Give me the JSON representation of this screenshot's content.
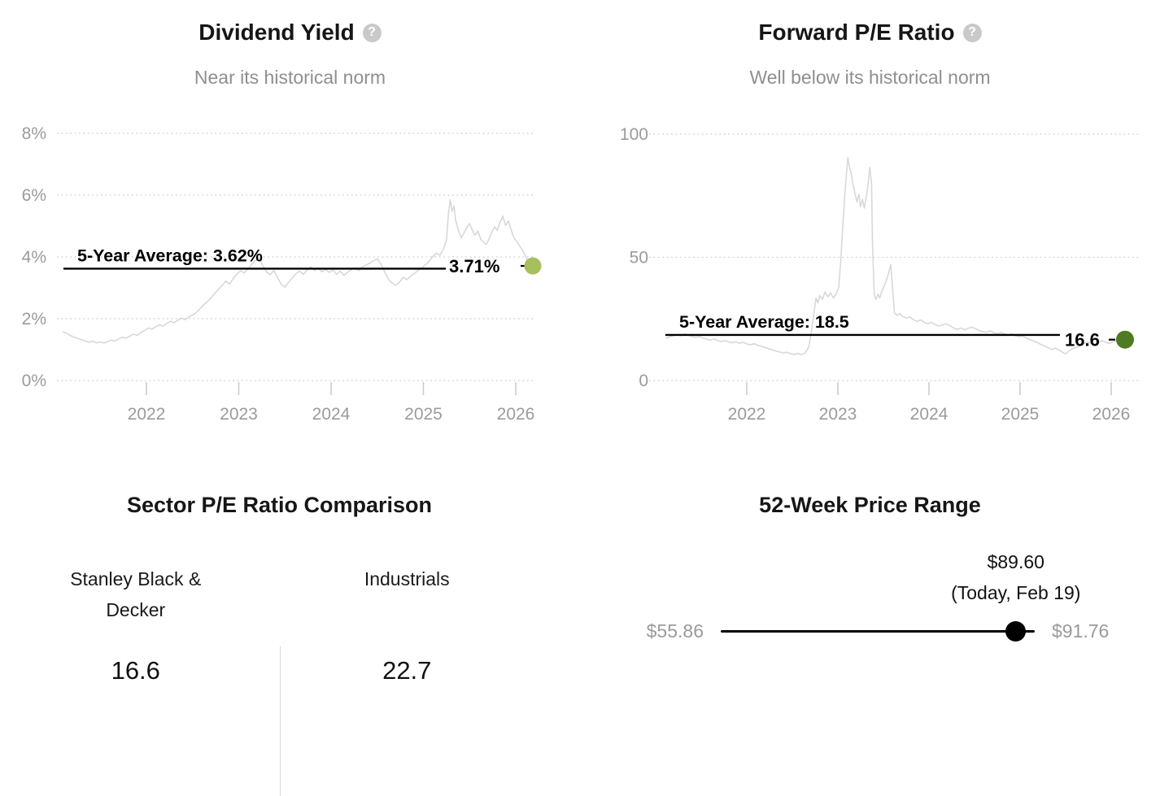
{
  "icons": {
    "help_glyph": "?"
  },
  "chart_data": [
    {
      "type": "line",
      "title": "Dividend Yield",
      "subtitle": "Near its historical norm",
      "help_icon": "question-mark-icon",
      "grid": "dotted-horizontal",
      "legend": "none",
      "line_color": "#d8d8d8",
      "axis_color": "#9b9b9b",
      "xlim": [
        2021.1,
        2026.3
      ],
      "ylim": [
        0,
        8.6
      ],
      "y_ticks": [
        {
          "label": "8%",
          "value": 8
        },
        {
          "label": "6%",
          "value": 6
        },
        {
          "label": "4%",
          "value": 4
        },
        {
          "label": "2%",
          "value": 2
        },
        {
          "label": "0%",
          "value": 0
        }
      ],
      "x_ticks": [
        {
          "label": "2022",
          "value": 2022
        },
        {
          "label": "2023",
          "value": 2023
        },
        {
          "label": "2024",
          "value": 2024
        },
        {
          "label": "2025",
          "value": 2025
        },
        {
          "label": "2026",
          "value": 2026
        }
      ],
      "average_line": {
        "label": "5-Year Average: 3.62%",
        "value": 3.62,
        "color": "#000000"
      },
      "current_point": {
        "label": "3.71%",
        "value": 3.71,
        "dot_color": "#a6c05e"
      },
      "series": [
        [
          2021.1,
          1.58
        ],
        [
          2021.14,
          1.52
        ],
        [
          2021.18,
          1.45
        ],
        [
          2021.22,
          1.4
        ],
        [
          2021.26,
          1.36
        ],
        [
          2021.3,
          1.32
        ],
        [
          2021.34,
          1.28
        ],
        [
          2021.38,
          1.24
        ],
        [
          2021.42,
          1.27
        ],
        [
          2021.46,
          1.22
        ],
        [
          2021.5,
          1.25
        ],
        [
          2021.54,
          1.21
        ],
        [
          2021.58,
          1.26
        ],
        [
          2021.62,
          1.31
        ],
        [
          2021.66,
          1.28
        ],
        [
          2021.7,
          1.35
        ],
        [
          2021.74,
          1.4
        ],
        [
          2021.78,
          1.37
        ],
        [
          2021.82,
          1.44
        ],
        [
          2021.86,
          1.5
        ],
        [
          2021.9,
          1.46
        ],
        [
          2021.94,
          1.55
        ],
        [
          2021.98,
          1.62
        ],
        [
          2022.02,
          1.7
        ],
        [
          2022.06,
          1.66
        ],
        [
          2022.1,
          1.74
        ],
        [
          2022.14,
          1.8
        ],
        [
          2022.18,
          1.76
        ],
        [
          2022.22,
          1.85
        ],
        [
          2022.26,
          1.92
        ],
        [
          2022.3,
          1.87
        ],
        [
          2022.34,
          1.95
        ],
        [
          2022.38,
          2.02
        ],
        [
          2022.42,
          1.97
        ],
        [
          2022.46,
          2.06
        ],
        [
          2022.5,
          2.12
        ],
        [
          2022.54,
          2.2
        ],
        [
          2022.58,
          2.32
        ],
        [
          2022.62,
          2.45
        ],
        [
          2022.66,
          2.55
        ],
        [
          2022.7,
          2.68
        ],
        [
          2022.74,
          2.82
        ],
        [
          2022.78,
          2.95
        ],
        [
          2022.82,
          3.08
        ],
        [
          2022.86,
          3.22
        ],
        [
          2022.9,
          3.12
        ],
        [
          2022.94,
          3.3
        ],
        [
          2022.98,
          3.45
        ],
        [
          2023.02,
          3.55
        ],
        [
          2023.06,
          3.48
        ],
        [
          2023.1,
          3.62
        ],
        [
          2023.14,
          3.75
        ],
        [
          2023.18,
          3.88
        ],
        [
          2023.22,
          3.96
        ],
        [
          2023.26,
          3.72
        ],
        [
          2023.3,
          3.52
        ],
        [
          2023.34,
          3.42
        ],
        [
          2023.38,
          3.56
        ],
        [
          2023.42,
          3.32
        ],
        [
          2023.46,
          3.12
        ],
        [
          2023.5,
          3.02
        ],
        [
          2023.54,
          3.18
        ],
        [
          2023.58,
          3.32
        ],
        [
          2023.62,
          3.46
        ],
        [
          2023.66,
          3.54
        ],
        [
          2023.7,
          3.44
        ],
        [
          2023.74,
          3.58
        ],
        [
          2023.78,
          3.68
        ],
        [
          2023.82,
          3.56
        ],
        [
          2023.86,
          3.64
        ],
        [
          2023.9,
          3.52
        ],
        [
          2023.94,
          3.6
        ],
        [
          2023.98,
          3.5
        ],
        [
          2024.02,
          3.58
        ],
        [
          2024.06,
          3.44
        ],
        [
          2024.1,
          3.54
        ],
        [
          2024.14,
          3.4
        ],
        [
          2024.18,
          3.5
        ],
        [
          2024.22,
          3.6
        ],
        [
          2024.26,
          3.64
        ],
        [
          2024.3,
          3.56
        ],
        [
          2024.34,
          3.68
        ],
        [
          2024.38,
          3.74
        ],
        [
          2024.42,
          3.8
        ],
        [
          2024.46,
          3.88
        ],
        [
          2024.5,
          3.94
        ],
        [
          2024.54,
          3.76
        ],
        [
          2024.58,
          3.52
        ],
        [
          2024.62,
          3.28
        ],
        [
          2024.66,
          3.16
        ],
        [
          2024.7,
          3.08
        ],
        [
          2024.74,
          3.18
        ],
        [
          2024.78,
          3.34
        ],
        [
          2024.82,
          3.26
        ],
        [
          2024.86,
          3.38
        ],
        [
          2024.9,
          3.46
        ],
        [
          2024.94,
          3.56
        ],
        [
          2024.98,
          3.64
        ],
        [
          2025.02,
          3.74
        ],
        [
          2025.06,
          3.86
        ],
        [
          2025.1,
          4.0
        ],
        [
          2025.14,
          4.12
        ],
        [
          2025.18,
          4.05
        ],
        [
          2025.22,
          4.28
        ],
        [
          2025.25,
          4.55
        ],
        [
          2025.27,
          5.35
        ],
        [
          2025.29,
          5.85
        ],
        [
          2025.31,
          5.48
        ],
        [
          2025.33,
          5.65
        ],
        [
          2025.35,
          5.18
        ],
        [
          2025.38,
          4.85
        ],
        [
          2025.41,
          4.62
        ],
        [
          2025.44,
          4.78
        ],
        [
          2025.47,
          4.95
        ],
        [
          2025.5,
          5.08
        ],
        [
          2025.53,
          4.86
        ],
        [
          2025.56,
          4.7
        ],
        [
          2025.59,
          4.84
        ],
        [
          2025.62,
          4.58
        ],
        [
          2025.65,
          4.48
        ],
        [
          2025.68,
          4.4
        ],
        [
          2025.71,
          4.58
        ],
        [
          2025.74,
          4.8
        ],
        [
          2025.77,
          4.98
        ],
        [
          2025.8,
          4.86
        ],
        [
          2025.83,
          5.12
        ],
        [
          2025.86,
          5.32
        ],
        [
          2025.89,
          5.02
        ],
        [
          2025.92,
          5.16
        ],
        [
          2025.95,
          4.88
        ],
        [
          2025.98,
          4.62
        ],
        [
          2026.02,
          4.46
        ],
        [
          2026.06,
          4.28
        ],
        [
          2026.1,
          4.08
        ],
        [
          2026.13,
          3.88
        ],
        [
          2026.16,
          3.71
        ]
      ]
    },
    {
      "type": "line",
      "title": "Forward P/E Ratio",
      "subtitle": "Well below its historical norm",
      "help_icon": "question-mark-icon",
      "grid": "dotted-horizontal",
      "legend": "none",
      "line_color": "#d8d8d8",
      "axis_color": "#9b9b9b",
      "xlim": [
        2021.1,
        2026.3
      ],
      "ylim": [
        0,
        100
      ],
      "y_ticks": [
        {
          "label": "100",
          "value": 100
        },
        {
          "label": "50",
          "value": 50
        },
        {
          "label": "0",
          "value": 0
        }
      ],
      "x_ticks": [
        {
          "label": "2022",
          "value": 2022
        },
        {
          "label": "2023",
          "value": 2023
        },
        {
          "label": "2024",
          "value": 2024
        },
        {
          "label": "2025",
          "value": 2025
        },
        {
          "label": "2026",
          "value": 2026
        }
      ],
      "average_line": {
        "label": "5-Year Average: 18.5",
        "value": 18.5,
        "color": "#000000"
      },
      "current_point": {
        "label": "16.6",
        "value": 16.6,
        "dot_color": "#4e7b22"
      },
      "series": [
        [
          2021.12,
          17.2
        ],
        [
          2021.16,
          17.8
        ],
        [
          2021.2,
          18.3
        ],
        [
          2021.24,
          18.7
        ],
        [
          2021.28,
          18.2
        ],
        [
          2021.32,
          18.9
        ],
        [
          2021.36,
          18.4
        ],
        [
          2021.4,
          17.9
        ],
        [
          2021.44,
          17.5
        ],
        [
          2021.48,
          17.9
        ],
        [
          2021.52,
          17.2
        ],
        [
          2021.56,
          16.8
        ],
        [
          2021.6,
          16.4
        ],
        [
          2021.64,
          16.9
        ],
        [
          2021.68,
          16.2
        ],
        [
          2021.72,
          15.8
        ],
        [
          2021.76,
          16.2
        ],
        [
          2021.8,
          15.7
        ],
        [
          2021.84,
          15.3
        ],
        [
          2021.88,
          15.7
        ],
        [
          2021.92,
          15.1
        ],
        [
          2021.96,
          15.5
        ],
        [
          2022.0,
          14.9
        ],
        [
          2022.04,
          14.5
        ],
        [
          2022.08,
          15.0
        ],
        [
          2022.12,
          14.3
        ],
        [
          2022.16,
          13.9
        ],
        [
          2022.2,
          13.4
        ],
        [
          2022.24,
          12.9
        ],
        [
          2022.28,
          12.4
        ],
        [
          2022.32,
          12.0
        ],
        [
          2022.36,
          11.6
        ],
        [
          2022.4,
          11.2
        ],
        [
          2022.44,
          11.5
        ],
        [
          2022.48,
          10.9
        ],
        [
          2022.52,
          10.6
        ],
        [
          2022.56,
          11.0
        ],
        [
          2022.6,
          10.5
        ],
        [
          2022.64,
          11.2
        ],
        [
          2022.68,
          13.5
        ],
        [
          2022.71,
          20.0
        ],
        [
          2022.74,
          28.0
        ],
        [
          2022.76,
          33.5
        ],
        [
          2022.78,
          31.5
        ],
        [
          2022.8,
          34.5
        ],
        [
          2022.83,
          33.0
        ],
        [
          2022.86,
          36.0
        ],
        [
          2022.89,
          34.0
        ],
        [
          2022.92,
          35.5
        ],
        [
          2022.95,
          33.5
        ],
        [
          2022.98,
          35.0
        ],
        [
          2023.01,
          38.0
        ],
        [
          2023.03,
          48.0
        ],
        [
          2023.05,
          60.0
        ],
        [
          2023.07,
          72.0
        ],
        [
          2023.09,
          82.0
        ],
        [
          2023.11,
          90.5
        ],
        [
          2023.13,
          86.0
        ],
        [
          2023.15,
          83.5
        ],
        [
          2023.17,
          79.0
        ],
        [
          2023.19,
          75.5
        ],
        [
          2023.21,
          72.5
        ],
        [
          2023.23,
          75.5
        ],
        [
          2023.25,
          70.5
        ],
        [
          2023.27,
          73.5
        ],
        [
          2023.29,
          70.0
        ],
        [
          2023.31,
          74.0
        ],
        [
          2023.33,
          79.0
        ],
        [
          2023.35,
          86.5
        ],
        [
          2023.37,
          80.0
        ],
        [
          2023.38,
          55.0
        ],
        [
          2023.4,
          34.5
        ],
        [
          2023.42,
          33.0
        ],
        [
          2023.44,
          35.0
        ],
        [
          2023.46,
          33.5
        ],
        [
          2023.48,
          36.0
        ],
        [
          2023.51,
          38.5
        ],
        [
          2023.54,
          41.5
        ],
        [
          2023.56,
          44.0
        ],
        [
          2023.58,
          47.0
        ],
        [
          2023.6,
          38.0
        ],
        [
          2023.62,
          27.5
        ],
        [
          2023.65,
          26.5
        ],
        [
          2023.68,
          27.2
        ],
        [
          2023.71,
          26.0
        ],
        [
          2023.75,
          25.3
        ],
        [
          2023.79,
          25.8
        ],
        [
          2023.83,
          24.7
        ],
        [
          2023.87,
          24.0
        ],
        [
          2023.91,
          24.6
        ],
        [
          2023.95,
          23.5
        ],
        [
          2023.99,
          23.0
        ],
        [
          2024.03,
          23.6
        ],
        [
          2024.07,
          22.7
        ],
        [
          2024.11,
          22.1
        ],
        [
          2024.15,
          22.6
        ],
        [
          2024.19,
          23.1
        ],
        [
          2024.23,
          22.2
        ],
        [
          2024.27,
          21.4
        ],
        [
          2024.31,
          20.8
        ],
        [
          2024.35,
          21.3
        ],
        [
          2024.39,
          20.6
        ],
        [
          2024.43,
          21.2
        ],
        [
          2024.47,
          21.7
        ],
        [
          2024.51,
          21.0
        ],
        [
          2024.55,
          20.3
        ],
        [
          2024.59,
          19.9
        ],
        [
          2024.63,
          19.6
        ],
        [
          2024.67,
          20.2
        ],
        [
          2024.71,
          19.4
        ],
        [
          2024.75,
          19.0
        ],
        [
          2024.79,
          19.5
        ],
        [
          2024.83,
          18.9
        ],
        [
          2024.87,
          18.5
        ],
        [
          2024.91,
          18.9
        ],
        [
          2024.95,
          18.2
        ],
        [
          2024.99,
          17.7
        ],
        [
          2025.03,
          18.0
        ],
        [
          2025.07,
          17.2
        ],
        [
          2025.11,
          16.6
        ],
        [
          2025.15,
          16.0
        ],
        [
          2025.19,
          15.4
        ],
        [
          2025.23,
          14.6
        ],
        [
          2025.27,
          14.0
        ],
        [
          2025.31,
          13.3
        ],
        [
          2025.35,
          12.6
        ],
        [
          2025.39,
          13.1
        ],
        [
          2025.43,
          12.3
        ],
        [
          2025.47,
          11.4
        ],
        [
          2025.5,
          10.8
        ],
        [
          2025.54,
          12.1
        ],
        [
          2025.58,
          13.0
        ],
        [
          2025.62,
          13.6
        ],
        [
          2025.66,
          14.2
        ],
        [
          2025.7,
          14.9
        ],
        [
          2025.74,
          15.7
        ],
        [
          2025.78,
          15.1
        ],
        [
          2025.82,
          14.6
        ],
        [
          2025.86,
          15.4
        ],
        [
          2025.9,
          16.2
        ],
        [
          2025.94,
          15.5
        ],
        [
          2025.98,
          15.0
        ],
        [
          2026.02,
          15.7
        ],
        [
          2026.06,
          16.1
        ],
        [
          2026.1,
          15.9
        ],
        [
          2026.14,
          16.6
        ]
      ]
    },
    {
      "type": "table",
      "title": "Sector P/E Ratio Comparison",
      "columns": [
        {
          "label": "Stanley Black & Decker",
          "value": "16.6"
        },
        {
          "label": "Industrials",
          "value": "22.7"
        }
      ]
    },
    {
      "type": "range",
      "title": "52-Week Price Range",
      "min_label": "$55.86",
      "max_label": "$91.76",
      "current_label": "$89.60",
      "current_sublabel": "(Today, Feb 19)",
      "min": 55.86,
      "max": 91.76,
      "current": 89.6,
      "dot_color": "#000000"
    }
  ]
}
